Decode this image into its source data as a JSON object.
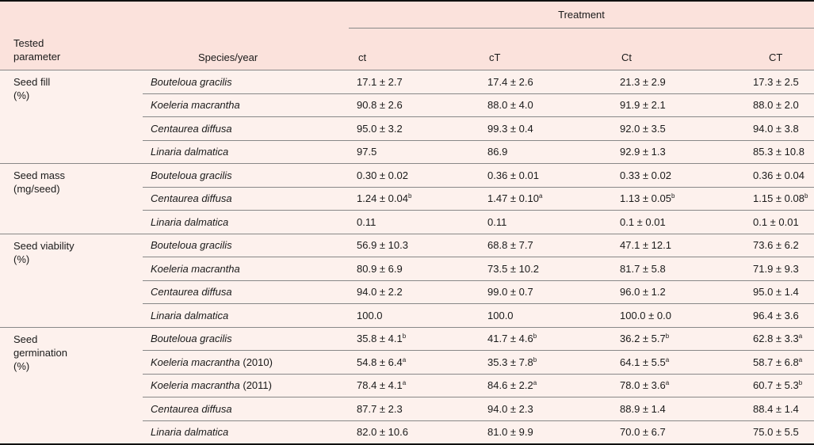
{
  "header": {
    "tested_parameter": "Tested parameter",
    "species_year": "Species/year",
    "treatment": "Treatment",
    "columns": [
      "ct",
      "cT",
      "Ct",
      "CT"
    ]
  },
  "groups": [
    {
      "parameter": "Seed fill",
      "unit": "(%)",
      "rows": [
        {
          "species": "Bouteloua gracilis",
          "year": "",
          "values": [
            {
              "v": "17.1 ± 2.7",
              "sup": ""
            },
            {
              "v": "17.4 ± 2.6",
              "sup": ""
            },
            {
              "v": "21.3 ± 2.9",
              "sup": ""
            },
            {
              "v": "17.3 ± 2.5",
              "sup": ""
            }
          ]
        },
        {
          "species": "Koeleria macrantha",
          "year": "",
          "values": [
            {
              "v": "90.8 ± 2.6",
              "sup": ""
            },
            {
              "v": "88.0 ± 4.0",
              "sup": ""
            },
            {
              "v": "91.9 ± 2.1",
              "sup": ""
            },
            {
              "v": "88.0 ± 2.0",
              "sup": ""
            }
          ]
        },
        {
          "species": "Centaurea diffusa",
          "year": "",
          "values": [
            {
              "v": "95.0 ± 3.2",
              "sup": ""
            },
            {
              "v": "99.3 ± 0.4",
              "sup": ""
            },
            {
              "v": "92.0 ± 3.5",
              "sup": ""
            },
            {
              "v": "94.0 ± 3.8",
              "sup": ""
            }
          ]
        },
        {
          "species": "Linaria dalmatica",
          "year": "",
          "values": [
            {
              "v": "97.5",
              "sup": ""
            },
            {
              "v": "86.9",
              "sup": ""
            },
            {
              "v": "92.9 ± 1.3",
              "sup": ""
            },
            {
              "v": "85.3 ± 10.8",
              "sup": ""
            }
          ]
        }
      ]
    },
    {
      "parameter": "Seed mass",
      "unit": "(mg/seed)",
      "rows": [
        {
          "species": "Bouteloua gracilis",
          "year": "",
          "values": [
            {
              "v": "0.30 ± 0.02",
              "sup": ""
            },
            {
              "v": "0.36 ± 0.01",
              "sup": ""
            },
            {
              "v": "0.33 ± 0.02",
              "sup": ""
            },
            {
              "v": "0.36 ± 0.04",
              "sup": ""
            }
          ]
        },
        {
          "species": "Centaurea diffusa",
          "year": "",
          "values": [
            {
              "v": "1.24 ± 0.04",
              "sup": "b"
            },
            {
              "v": "1.47 ± 0.10",
              "sup": "a"
            },
            {
              "v": "1.13 ± 0.05",
              "sup": "b"
            },
            {
              "v": "1.15 ± 0.08",
              "sup": "b"
            }
          ]
        },
        {
          "species": "Linaria dalmatica",
          "year": "",
          "values": [
            {
              "v": "0.11",
              "sup": ""
            },
            {
              "v": "0.11",
              "sup": ""
            },
            {
              "v": "0.1 ± 0.01",
              "sup": ""
            },
            {
              "v": "0.1 ± 0.01",
              "sup": ""
            }
          ]
        }
      ]
    },
    {
      "parameter": "Seed viability",
      "unit": "(%)",
      "rows": [
        {
          "species": "Bouteloua gracilis",
          "year": "",
          "values": [
            {
              "v": "56.9 ± 10.3",
              "sup": ""
            },
            {
              "v": "68.8 ± 7.7",
              "sup": ""
            },
            {
              "v": "47.1 ± 12.1",
              "sup": ""
            },
            {
              "v": "73.6 ± 6.2",
              "sup": ""
            }
          ]
        },
        {
          "species": "Koeleria macrantha",
          "year": "",
          "values": [
            {
              "v": "80.9 ± 6.9",
              "sup": ""
            },
            {
              "v": "73.5 ± 10.2",
              "sup": ""
            },
            {
              "v": "81.7 ± 5.8",
              "sup": ""
            },
            {
              "v": "71.9 ± 9.3",
              "sup": ""
            }
          ]
        },
        {
          "species": "Centaurea diffusa",
          "year": "",
          "values": [
            {
              "v": "94.0 ± 2.2",
              "sup": ""
            },
            {
              "v": "99.0 ± 0.7",
              "sup": ""
            },
            {
              "v": "96.0 ± 1.2",
              "sup": ""
            },
            {
              "v": "95.0 ± 1.4",
              "sup": ""
            }
          ]
        },
        {
          "species": "Linaria dalmatica",
          "year": "",
          "values": [
            {
              "v": "100.0",
              "sup": ""
            },
            {
              "v": "100.0",
              "sup": ""
            },
            {
              "v": "100.0 ± 0.0",
              "sup": ""
            },
            {
              "v": "96.4 ± 3.6",
              "sup": ""
            }
          ]
        }
      ]
    },
    {
      "parameter": "Seed germination",
      "unit": "(%)",
      "rows": [
        {
          "species": "Bouteloua gracilis",
          "year": "",
          "values": [
            {
              "v": "35.8 ± 4.1",
              "sup": "b"
            },
            {
              "v": "41.7 ± 4.6",
              "sup": "b"
            },
            {
              "v": "36.2 ± 5.7",
              "sup": "b"
            },
            {
              "v": "62.8 ± 3.3",
              "sup": "a"
            }
          ]
        },
        {
          "species": "Koeleria macrantha",
          "year": "(2010)",
          "values": [
            {
              "v": "54.8 ± 6.4",
              "sup": "a"
            },
            {
              "v": "35.3 ± 7.8",
              "sup": "b"
            },
            {
              "v": "64.1 ± 5.5",
              "sup": "a"
            },
            {
              "v": "58.7 ± 6.8",
              "sup": "a"
            }
          ]
        },
        {
          "species": "Koeleria macrantha",
          "year": "(2011)",
          "values": [
            {
              "v": "78.4 ± 4.1",
              "sup": "a"
            },
            {
              "v": "84.6 ± 2.2",
              "sup": "a"
            },
            {
              "v": "78.0 ± 3.6",
              "sup": "a"
            },
            {
              "v": "60.7 ± 5.3",
              "sup": "b"
            }
          ]
        },
        {
          "species": "Centaurea diffusa",
          "year": "",
          "values": [
            {
              "v": "87.7 ± 2.3",
              "sup": ""
            },
            {
              "v": "94.0 ± 2.3",
              "sup": ""
            },
            {
              "v": "88.9 ± 1.4",
              "sup": ""
            },
            {
              "v": "88.4 ± 1.4",
              "sup": ""
            }
          ]
        },
        {
          "species": "Linaria dalmatica",
          "year": "",
          "values": [
            {
              "v": "82.0 ± 10.6",
              "sup": ""
            },
            {
              "v": "81.0 ± 9.9",
              "sup": ""
            },
            {
              "v": "70.0 ± 6.7",
              "sup": ""
            },
            {
              "v": "75.0 ± 5.5",
              "sup": ""
            }
          ]
        }
      ]
    }
  ]
}
